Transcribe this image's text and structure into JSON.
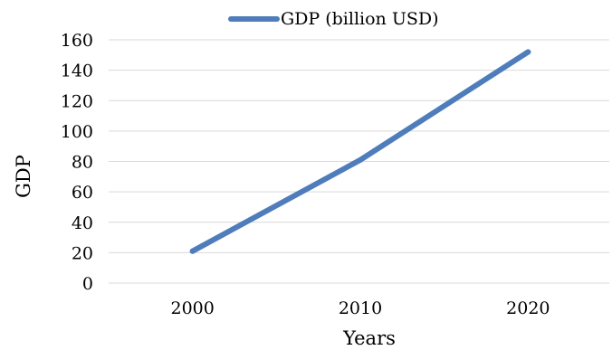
{
  "chart_data": {
    "type": "line",
    "categories": [
      "2000",
      "2010",
      "2020"
    ],
    "series": [
      {
        "name": "GDP (billion USD)",
        "values": [
          21,
          81,
          152
        ]
      }
    ],
    "xlabel": "Years",
    "ylabel": "GDP",
    "ylim": [
      0,
      160
    ],
    "yticks": [
      0,
      20,
      40,
      60,
      80,
      100,
      120,
      140,
      160
    ],
    "grid": true,
    "legend_position": "top",
    "colors": {
      "series": "#4f7dbb",
      "grid": "#d9d9d9"
    }
  }
}
